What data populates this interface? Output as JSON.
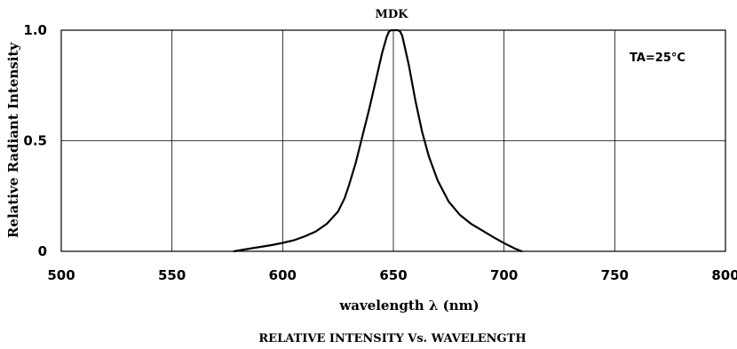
{
  "chart_data": {
    "type": "line",
    "title": "MDK",
    "xlabel": "wavelength λ (nm)",
    "ylabel": "Relative  Radiant  Intensity",
    "caption": "RELATIVE  INTENSITY  Vs.  WAVELENGTH",
    "annotation": "TA=25°C",
    "xlim": [
      500,
      800
    ],
    "ylim": [
      0,
      1.0
    ],
    "x_ticks": [
      500,
      550,
      600,
      650,
      700,
      750,
      800
    ],
    "x_tick_labels": [
      "500",
      "550",
      "600",
      "650",
      "700",
      "750",
      "800"
    ],
    "y_ticks": [
      0,
      0.5,
      1.0
    ],
    "y_tick_labels": [
      "0",
      "0.5",
      "1.0"
    ],
    "grid": true,
    "colors": {
      "line": "#000000",
      "grid": "#000000",
      "background": "#ffffff"
    },
    "series": [
      {
        "x": [
          578,
          585,
          590,
          595,
          600,
          605,
          610,
          615,
          620,
          625,
          628,
          630,
          633,
          636,
          639,
          642,
          645,
          647,
          648,
          649,
          650,
          651,
          652,
          653,
          654,
          655,
          657,
          660,
          663,
          666,
          670,
          675,
          680,
          685,
          690,
          695,
          700,
          705,
          708
        ],
        "y": [
          0.0,
          0.012,
          0.02,
          0.028,
          0.038,
          0.05,
          0.068,
          0.09,
          0.125,
          0.18,
          0.24,
          0.3,
          0.4,
          0.52,
          0.64,
          0.77,
          0.9,
          0.97,
          0.993,
          1.0,
          1.0,
          1.0,
          1.0,
          0.995,
          0.975,
          0.93,
          0.84,
          0.68,
          0.54,
          0.43,
          0.32,
          0.225,
          0.165,
          0.125,
          0.095,
          0.065,
          0.037,
          0.012,
          0.0
        ]
      }
    ]
  }
}
